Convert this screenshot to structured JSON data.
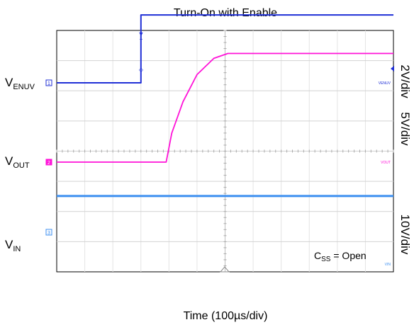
{
  "chart_data": {
    "type": "line",
    "title": "Turn-On with Enable",
    "xlabel": "Time (100µs/div)",
    "x_unit": "µs",
    "x_divisions": 12,
    "y_divisions": 8,
    "xlim": [
      0,
      1200
    ],
    "grid": true,
    "channels": [
      {
        "label_main": "V",
        "label_sub": "ENUV",
        "tag": "VENUV",
        "marker": "1",
        "scale": "2V/div",
        "color": "#1f2fd6",
        "x": [
          0,
          300,
          300,
          1200
        ],
        "y": [
          0,
          0,
          4.5,
          4.5
        ]
      },
      {
        "label_main": "V",
        "label_sub": "OUT",
        "tag": "VOUT",
        "marker": "2",
        "scale": "5V/div",
        "color": "#ff12d8",
        "x": [
          0,
          390,
          410,
          450,
          500,
          560,
          610,
          1200
        ],
        "y": [
          0,
          0,
          4.8,
          10,
          14.5,
          17.2,
          18,
          18
        ]
      },
      {
        "label_main": "V",
        "label_sub": "IN",
        "tag": "VIN",
        "marker": "3",
        "scale": "10V/div",
        "color": "#3c8ff0",
        "x": [
          0,
          1200
        ],
        "y": [
          12,
          12
        ]
      }
    ],
    "annotation": {
      "main": "C",
      "sub": "SS",
      "rest": " = Open"
    }
  }
}
